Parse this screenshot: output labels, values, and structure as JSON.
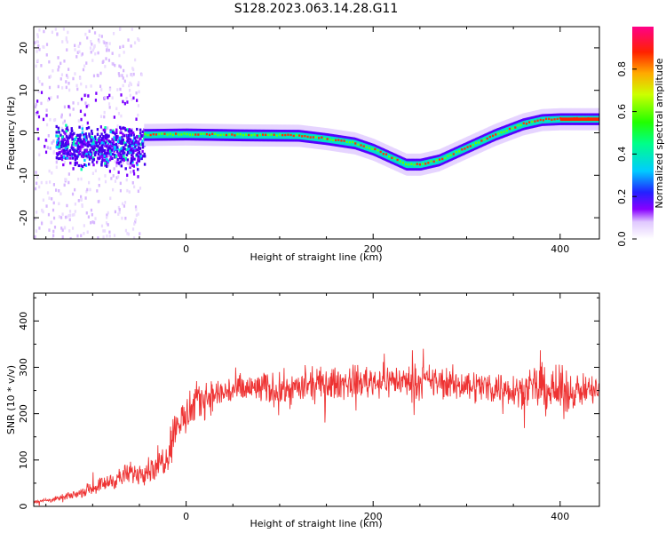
{
  "title": "S128.2023.063.14.28.G11",
  "chart_data": [
    {
      "type": "heatmap",
      "name": "spectrogram",
      "xlabel": "Height of straight line (km)",
      "ylabel": "Frequency (Hz)",
      "xlim": [
        -163,
        442
      ],
      "ylim": [
        -25,
        25
      ],
      "xticks": [
        0,
        200,
        400
      ],
      "yticks": [
        -20,
        -10,
        0,
        10,
        20
      ],
      "colorbar": {
        "label": "Normalized spectral amplitude",
        "range": [
          0,
          1
        ],
        "ticks": [
          0.0,
          0.2,
          0.4,
          0.6,
          0.8
        ]
      },
      "ridge": {
        "x": [
          -50,
          -40,
          0,
          60,
          120,
          150,
          180,
          200,
          220,
          235,
          250,
          270,
          300,
          330,
          360,
          380,
          400,
          420,
          442
        ],
        "y": [
          -0.5,
          -0.5,
          -0.4,
          -0.6,
          -0.7,
          -1.5,
          -2.5,
          -4.0,
          -6.0,
          -7.5,
          -7.5,
          -6.5,
          -3.5,
          -0.5,
          2.0,
          3.0,
          3.2,
          3.2,
          3.2
        ]
      }
    },
    {
      "type": "line",
      "name": "snr",
      "xlabel": "Height of straight line (km)",
      "ylabel": "SNR (10 * v/v)",
      "xlim": [
        -163,
        442
      ],
      "ylim": [
        0,
        460
      ],
      "xticks": [
        0,
        200,
        400
      ],
      "yticks": [
        0,
        100,
        200,
        300,
        400
      ],
      "color": "#ee3333",
      "series": [
        {
          "x": [
            -163,
            -140,
            -120,
            -100,
            -80,
            -60,
            -50,
            -40,
            -30,
            -20,
            -15,
            -10,
            0,
            10,
            20,
            30,
            50,
            80,
            100,
            120,
            140,
            160,
            180,
            200,
            220,
            240,
            260,
            280,
            300,
            320,
            340,
            360,
            380,
            390,
            400,
            410,
            420,
            442
          ],
          "y": [
            10,
            15,
            25,
            40,
            55,
            70,
            75,
            80,
            90,
            110,
            150,
            180,
            190,
            220,
            235,
            240,
            250,
            255,
            250,
            255,
            262,
            265,
            268,
            270,
            272,
            268,
            270,
            265,
            262,
            258,
            255,
            252,
            255,
            250,
            245,
            248,
            250,
            250
          ]
        }
      ]
    }
  ]
}
